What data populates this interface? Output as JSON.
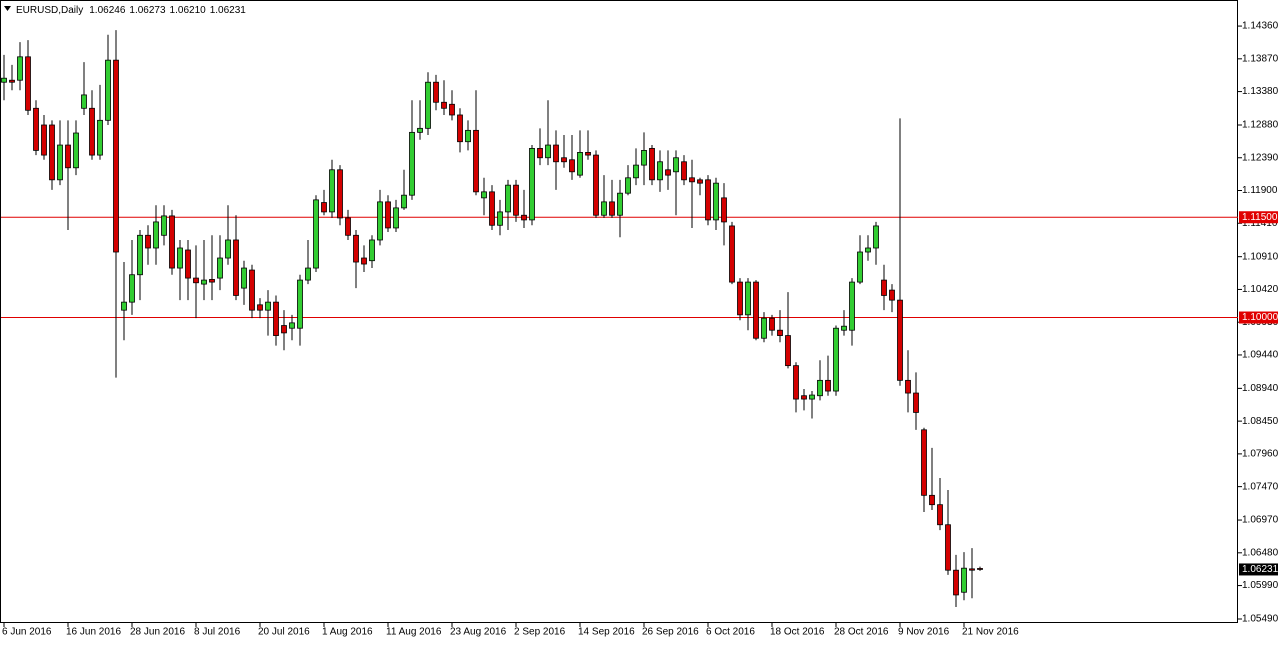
{
  "chart_data": {
    "type": "candlestick",
    "title": "EURUSD,Daily",
    "info": [
      {
        "value": 1.06246,
        "label": "1.06246"
      },
      {
        "value": 1.06273,
        "label": "1.06273"
      },
      {
        "value": 1.0621,
        "label": "1.06210"
      },
      {
        "value": 1.06231,
        "label": "1.06231"
      }
    ],
    "categories": [
      "6 Jun 2016",
      null,
      null,
      null,
      null,
      null,
      null,
      null,
      "16 Jun 2016",
      null,
      null,
      null,
      null,
      null,
      null,
      null,
      "28 Jun 2016",
      null,
      null,
      null,
      null,
      null,
      null,
      null,
      "8 Jul 2016",
      null,
      null,
      null,
      null,
      null,
      null,
      null,
      "20 Jul 2016",
      null,
      null,
      null,
      null,
      null,
      null,
      null,
      "1 Aug 2016",
      null,
      null,
      null,
      null,
      null,
      null,
      null,
      "11 Aug 2016",
      null,
      null,
      null,
      null,
      null,
      null,
      null,
      "23 Aug 2016",
      null,
      null,
      null,
      null,
      null,
      null,
      null,
      "2 Sep 2016",
      null,
      null,
      null,
      null,
      null,
      null,
      null,
      "14 Sep 2016",
      null,
      null,
      null,
      null,
      null,
      null,
      null,
      "26 Sep 2016",
      null,
      null,
      null,
      null,
      null,
      null,
      null,
      "6 Oct 2016",
      null,
      null,
      null,
      null,
      null,
      null,
      null,
      "18 Oct 2016",
      null,
      null,
      null,
      null,
      null,
      null,
      null,
      "28 Oct 2016",
      null,
      null,
      null,
      null,
      null,
      null,
      null,
      "9 Nov 2016",
      null,
      null,
      null,
      null,
      null,
      null,
      null,
      "21 Nov 2016",
      null,
      null
    ],
    "open": [
      1.1352,
      1.1355,
      1.1355,
      1.139,
      1.1313,
      1.1288,
      1.1288,
      1.1206,
      1.1258,
      1.1224,
      1.1313,
      1.1313,
      1.1243,
      1.1295,
      1.1385,
      1.1011,
      1.1023,
      1.1064,
      1.1123,
      1.1104,
      1.1123,
      1.1152,
      1.1074,
      1.1101,
      1.1059,
      1.105,
      1.1057,
      1.1059,
      1.1089,
      1.1116,
      1.1044,
      1.1071,
      1.1019,
      1.1011,
      1.1023,
      1.0988,
      1.0984,
      1.0984,
      1.1056,
      1.1074,
      1.1172,
      1.1158,
      1.1221,
      1.1149,
      1.1123,
      1.1089,
      1.1085,
      1.1116,
      1.1173,
      1.1134,
      1.1164,
      1.1183,
      1.1277,
      1.1283,
      1.1352,
      1.1322,
      1.1319,
      1.1303,
      1.1263,
      1.128,
      1.1179,
      1.1188,
      1.1138,
      1.1158,
      1.1198,
      1.1153,
      1.1146,
      1.1253,
      1.1239,
      1.1258,
      1.1239,
      1.1236,
      1.1213,
      1.1247,
      1.1243,
      1.1153,
      1.1173,
      1.1153,
      1.1186,
      1.1209,
      1.1228,
      1.1253,
      1.1206,
      1.1221,
      1.1218,
      1.1233,
      1.1209,
      1.1206,
      1.1206,
      1.1146,
      1.1179,
      1.1137,
      1.1053,
      1.1004,
      1.1053,
      1.0969,
      1.0999,
      1.0981,
      1.0973,
      1.0928,
      1.0883,
      1.0878,
      1.0883,
      1.0906,
      1.089,
      1.0981,
      1.0981,
      1.1053,
      1.1098,
      1.1104,
      1.1056,
      1.1041,
      1.1026,
      1.0906,
      1.0887,
      1.0832,
      1.0734,
      1.072,
      1.069,
      1.0622,
      1.0589,
      1.0624,
      1.06246
    ],
    "high": [
      1.1393,
      1.1378,
      1.1412,
      1.1415,
      1.1325,
      1.1303,
      1.1295,
      1.1295,
      1.1295,
      1.1295,
      1.1382,
      1.134,
      1.1348,
      1.1423,
      1.143,
      1.1083,
      1.1116,
      1.1131,
      1.1138,
      1.1168,
      1.1168,
      1.1161,
      1.1116,
      1.1116,
      1.1108,
      1.1116,
      1.1123,
      1.1123,
      1.1168,
      1.1153,
      1.1085,
      1.1079,
      1.1029,
      1.1041,
      1.1033,
      1.1011,
      1.1004,
      1.1064,
      1.1116,
      1.1183,
      1.1191,
      1.1236,
      1.1228,
      1.1161,
      1.1131,
      1.1108,
      1.1123,
      1.1191,
      1.1183,
      1.1176,
      1.1221,
      1.1325,
      1.1325,
      1.1367,
      1.1363,
      1.1355,
      1.134,
      1.1313,
      1.1295,
      1.134,
      1.1209,
      1.1198,
      1.1176,
      1.1206,
      1.1206,
      1.1191,
      1.1258,
      1.1283,
      1.1325,
      1.128,
      1.1273,
      1.1273,
      1.128,
      1.128,
      1.125,
      1.1213,
      1.1206,
      1.1206,
      1.1228,
      1.1253,
      1.1277,
      1.1258,
      1.125,
      1.125,
      1.125,
      1.1243,
      1.1236,
      1.1209,
      1.1213,
      1.1209,
      1.1201,
      1.1143,
      1.1059,
      1.1059,
      1.1056,
      1.1008,
      1.1004,
      1.1011,
      1.1038,
      1.0933,
      1.0893,
      1.089,
      1.0936,
      1.0943,
      1.0988,
      1.1011,
      1.1059,
      1.1123,
      1.1123,
      1.1143,
      1.1079,
      1.105,
      1.1298,
      1.0951,
      1.0918,
      1.0835,
      1.0805,
      1.076,
      1.0742,
      1.0645,
      1.0649,
      1.0655,
      1.06273
    ],
    "low": [
      1.1325,
      1.134,
      1.134,
      1.1303,
      1.1243,
      1.1236,
      1.1191,
      1.1198,
      1.1131,
      1.1213,
      1.1303,
      1.1236,
      1.1236,
      1.1288,
      1.091,
      1.0966,
      1.1004,
      1.1026,
      1.1079,
      1.1079,
      1.1108,
      1.1064,
      1.1026,
      1.1026,
      1.0999,
      1.1026,
      1.1026,
      1.1041,
      1.1079,
      1.1026,
      1.1019,
      1.0999,
      1.0999,
      1.0973,
      1.0958,
      1.0951,
      1.0966,
      1.0958,
      1.105,
      1.1068,
      1.1153,
      1.1149,
      1.1138,
      1.1116,
      1.1044,
      1.1068,
      1.1074,
      1.1108,
      1.1128,
      1.1128,
      1.1161,
      1.1176,
      1.1266,
      1.1273,
      1.131,
      1.1303,
      1.1295,
      1.1247,
      1.125,
      1.1183,
      1.1153,
      1.1131,
      1.1123,
      1.1131,
      1.1143,
      1.1134,
      1.1138,
      1.1228,
      1.1228,
      1.1191,
      1.1224,
      1.1206,
      1.1209,
      1.1236,
      1.1149,
      1.1149,
      1.1149,
      1.112,
      1.1183,
      1.1198,
      1.1198,
      1.1198,
      1.1188,
      1.1191,
      1.1153,
      1.1198,
      1.1134,
      1.1183,
      1.1138,
      1.1131,
      1.1108,
      1.105,
      1.0996,
      1.0981,
      1.0966,
      1.0963,
      1.0973,
      1.0963,
      1.0924,
      1.0858,
      1.0861,
      1.0849,
      1.0876,
      1.0883,
      1.0883,
      1.0973,
      1.0958,
      1.105,
      1.1085,
      1.1079,
      1.1011,
      1.1008,
      1.0898,
      1.0858,
      1.0832,
      1.0709,
      1.0712,
      1.0682,
      1.0615,
      1.0567,
      1.0577,
      1.058,
      1.0621
    ],
    "close": [
      1.1358,
      1.1352,
      1.139,
      1.131,
      1.125,
      1.1243,
      1.1206,
      1.1258,
      1.1224,
      1.1276,
      1.1333,
      1.1243,
      1.1295,
      1.1385,
      1.1098,
      1.1023,
      1.1064,
      1.1123,
      1.1104,
      1.1143,
      1.1152,
      1.1074,
      1.1104,
      1.1059,
      1.1052,
      1.1056,
      1.1053,
      1.1089,
      1.1116,
      1.1033,
      1.1074,
      1.1011,
      1.1011,
      1.1023,
      1.0973,
      1.0977,
      1.0992,
      1.1056,
      1.1074,
      1.1176,
      1.1158,
      1.1221,
      1.1149,
      1.1123,
      1.1083,
      1.108,
      1.1116,
      1.1173,
      1.1134,
      1.1164,
      1.1183,
      1.1277,
      1.1283,
      1.1352,
      1.1322,
      1.1313,
      1.1303,
      1.1263,
      1.128,
      1.1188,
      1.1188,
      1.1138,
      1.1158,
      1.1198,
      1.1153,
      1.1146,
      1.1253,
      1.1239,
      1.1258,
      1.1233,
      1.1233,
      1.1218,
      1.1247,
      1.1243,
      1.1153,
      1.1173,
      1.1153,
      1.1186,
      1.1209,
      1.1228,
      1.125,
      1.1206,
      1.1233,
      1.1213,
      1.1239,
      1.1206,
      1.1203,
      1.1201,
      1.1146,
      1.1201,
      1.1143,
      1.1053,
      1.1004,
      1.1053,
      1.0969,
      1.0999,
      1.0981,
      1.0973,
      1.0928,
      1.0878,
      1.0878,
      1.0884,
      1.0906,
      1.089,
      1.0984,
      1.0987,
      1.1053,
      1.1098,
      1.1104,
      1.1137,
      1.1033,
      1.1026,
      1.0906,
      1.0887,
      1.0858,
      1.0734,
      1.072,
      1.069,
      1.0622,
      1.0585,
      1.0625,
      1.0622,
      1.06231
    ],
    "up_color": "#32cd32",
    "down_color": "#d40000",
    "ylim": [
      1.0543,
      1.1475
    ],
    "yticks": [
      {
        "value": 1.1436,
        "label": "1.14360"
      },
      {
        "value": 1.1387,
        "label": "1.13870"
      },
      {
        "value": 1.1338,
        "label": "1.13380"
      },
      {
        "value": 1.1288,
        "label": "1.12880"
      },
      {
        "value": 1.1239,
        "label": "1.12390"
      },
      {
        "value": 1.119,
        "label": "1.11900"
      },
      {
        "value": 1.1141,
        "label": "1.11410"
      },
      {
        "value": 1.1091,
        "label": "1.10910"
      },
      {
        "value": 1.1042,
        "label": "1.10420"
      },
      {
        "value": 1.0993,
        "label": "1.09930"
      },
      {
        "value": 1.0944,
        "label": "1.09440"
      },
      {
        "value": 1.0894,
        "label": "1.08940"
      },
      {
        "value": 1.0845,
        "label": "1.08450"
      },
      {
        "value": 1.0796,
        "label": "1.07960"
      },
      {
        "value": 1.0747,
        "label": "1.07470"
      },
      {
        "value": 1.0697,
        "label": "1.06970"
      },
      {
        "value": 1.0648,
        "label": "1.06480"
      },
      {
        "value": 1.0599,
        "label": "1.05990"
      },
      {
        "value": 1.0549,
        "label": "1.05490"
      }
    ],
    "hlines": [
      {
        "value": 1.115,
        "label": "1.11500",
        "color": "#e00000"
      },
      {
        "value": 1.1,
        "label": "1.10000",
        "color": "#e00000"
      }
    ],
    "current_price": {
      "value": 1.06231,
      "label": "1.06231",
      "color": "#000000"
    },
    "grid": false
  }
}
